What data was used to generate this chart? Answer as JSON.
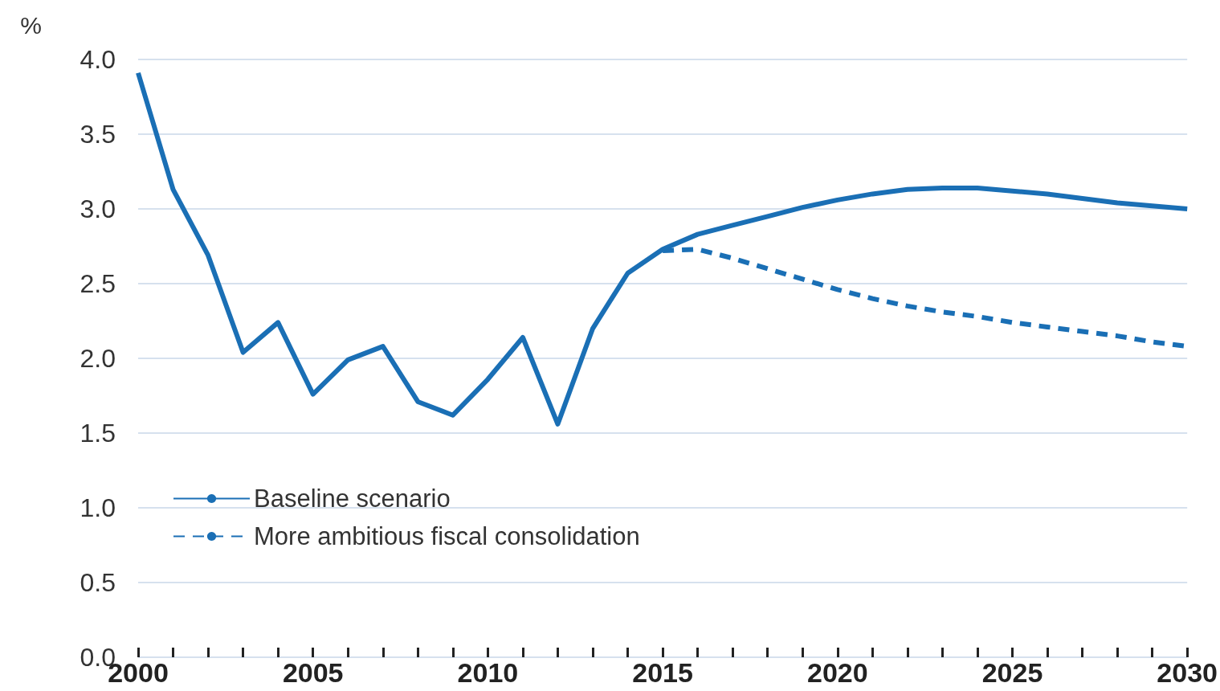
{
  "chart_data": {
    "type": "line",
    "ylabel": "%",
    "xlim": [
      2000,
      2030
    ],
    "ylim": [
      0,
      4
    ],
    "xticks": [
      2000,
      {
        "value": 2001,
        "label": null
      },
      {
        "value": 2002,
        "label": null
      },
      {
        "value": 2003,
        "label": null
      },
      {
        "value": 2004,
        "label": null
      },
      2005,
      {
        "value": 2006,
        "label": null
      },
      {
        "value": 2007,
        "label": null
      },
      {
        "value": 2008,
        "label": null
      },
      {
        "value": 2009,
        "label": null
      },
      2010,
      {
        "value": 2011,
        "label": null
      },
      {
        "value": 2012,
        "label": null
      },
      {
        "value": 2013,
        "label": null
      },
      {
        "value": 2014,
        "label": null
      },
      2015,
      {
        "value": 2016,
        "label": null
      },
      {
        "value": 2017,
        "label": null
      },
      {
        "value": 2018,
        "label": null
      },
      {
        "value": 2019,
        "label": null
      },
      2020,
      {
        "value": 2021,
        "label": null
      },
      {
        "value": 2022,
        "label": null
      },
      {
        "value": 2023,
        "label": null
      },
      {
        "value": 2024,
        "label": null
      },
      2025,
      {
        "value": 2026,
        "label": null
      },
      {
        "value": 2027,
        "label": null
      },
      {
        "value": 2028,
        "label": null
      },
      {
        "value": 2029,
        "label": null
      },
      2030
    ],
    "yticks": [
      {
        "value": 0,
        "label": "0.0"
      },
      {
        "value": 0.5,
        "label": "0.5"
      },
      {
        "value": 1,
        "label": "1.0"
      },
      {
        "value": 1.5,
        "label": "1.5"
      },
      {
        "value": 2,
        "label": "2.0"
      },
      {
        "value": 2.5,
        "label": "2.5"
      },
      {
        "value": 3,
        "label": "3.0"
      },
      {
        "value": 3.5,
        "label": "3.5"
      },
      {
        "value": 4,
        "label": "4.0"
      }
    ],
    "grid": "y",
    "legend": "bottom left",
    "marker": "none",
    "series": [
      {
        "name": "Baseline scenario",
        "color": "#1a6fb5",
        "line_style": "solid",
        "x": [
          2000,
          2001,
          2002,
          2003,
          2004,
          2005,
          2006,
          2007,
          2008,
          2009,
          2010,
          2011,
          2012,
          2013,
          2014,
          2015,
          2016,
          2017,
          2018,
          2019,
          2020,
          2021,
          2022,
          2023,
          2024,
          2025,
          2026,
          2027,
          2028,
          2029,
          2030
        ],
        "values": [
          3.91,
          3.13,
          2.69,
          2.04,
          2.24,
          1.76,
          1.99,
          2.08,
          1.71,
          1.62,
          1.86,
          2.14,
          1.56,
          2.2,
          2.57,
          2.73,
          2.83,
          2.89,
          2.95,
          3.01,
          3.06,
          3.1,
          3.13,
          3.14,
          3.14,
          3.12,
          3.1,
          3.07,
          3.04,
          3.02,
          3.0
        ]
      },
      {
        "name": "More ambitious fiscal consolidation",
        "color": "#1a6fb5",
        "line_style": "dashed",
        "x": [
          2015,
          2016,
          2017,
          2018,
          2019,
          2020,
          2021,
          2022,
          2023,
          2024,
          2025,
          2026,
          2027,
          2028,
          2029,
          2030
        ],
        "values": [
          2.72,
          2.73,
          2.67,
          2.6,
          2.53,
          2.46,
          2.4,
          2.35,
          2.31,
          2.28,
          2.24,
          2.21,
          2.18,
          2.15,
          2.11,
          2.08
        ]
      }
    ]
  }
}
